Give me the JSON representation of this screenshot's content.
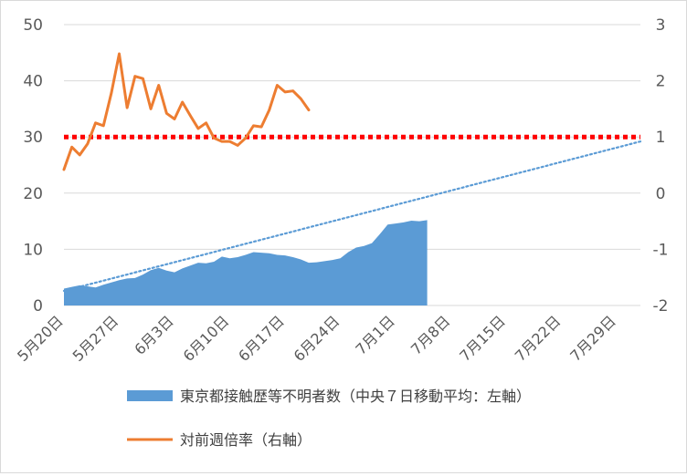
{
  "chart_data": {
    "type": "area+line",
    "title": "",
    "x_labels": [
      "5月20日",
      "5月27日",
      "6月3日",
      "6月10日",
      "6月17日",
      "6月24日",
      "7月1日",
      "7月8日",
      "7月15日",
      "7月22日",
      "7月29日"
    ],
    "left_axis": {
      "ylim": [
        0,
        50
      ],
      "ticks": [
        "0",
        "10",
        "20",
        "30",
        "40",
        "50"
      ]
    },
    "right_axis": {
      "ylim": [
        -2,
        3
      ],
      "ticks": [
        "-2",
        "-1",
        "0",
        "1",
        "2",
        "3"
      ]
    },
    "grid": true,
    "legend_position": "bottom",
    "series": [
      {
        "name": "東京都接触歴等不明者数（中央７日移動平均：左軸）",
        "kind": "area",
        "axis": "left",
        "color": "#5b9bd5",
        "start_day": 0,
        "values": [
          3.0,
          3.3,
          3.6,
          3.4,
          3.2,
          3.7,
          4.1,
          4.5,
          4.8,
          4.9,
          5.5,
          6.3,
          6.7,
          6.2,
          5.9,
          6.6,
          7.1,
          7.6,
          7.5,
          7.8,
          8.7,
          8.4,
          8.6,
          9.0,
          9.5,
          9.4,
          9.3,
          9.0,
          8.9,
          8.6,
          8.2,
          7.6,
          7.7,
          7.9,
          8.1,
          8.4,
          9.5,
          10.3,
          10.6,
          11.1,
          12.7,
          14.4,
          14.6,
          14.8,
          15.1,
          15.0,
          15.2
        ]
      },
      {
        "name": "",
        "kind": "trendline",
        "axis": "left",
        "color": "#5b9bd5",
        "x": [
          0,
          73
        ],
        "values": [
          2.6,
          29.2
        ]
      },
      {
        "name": "対前週倍率（右軸）",
        "kind": "line",
        "axis": "right",
        "color": "#ed7d31",
        "start_day": 0,
        "values": [
          0.42,
          0.82,
          0.68,
          0.88,
          1.25,
          1.2,
          1.78,
          2.48,
          1.52,
          2.08,
          2.04,
          1.5,
          1.92,
          1.42,
          1.32,
          1.62,
          1.38,
          1.15,
          1.25,
          0.98,
          0.92,
          0.92,
          0.85,
          0.98,
          1.2,
          1.18,
          1.48,
          1.92,
          1.8,
          1.82,
          1.68,
          1.48
        ]
      },
      {
        "name": "",
        "kind": "reference",
        "axis": "right",
        "color": "#ff0000",
        "value": 1
      }
    ]
  }
}
